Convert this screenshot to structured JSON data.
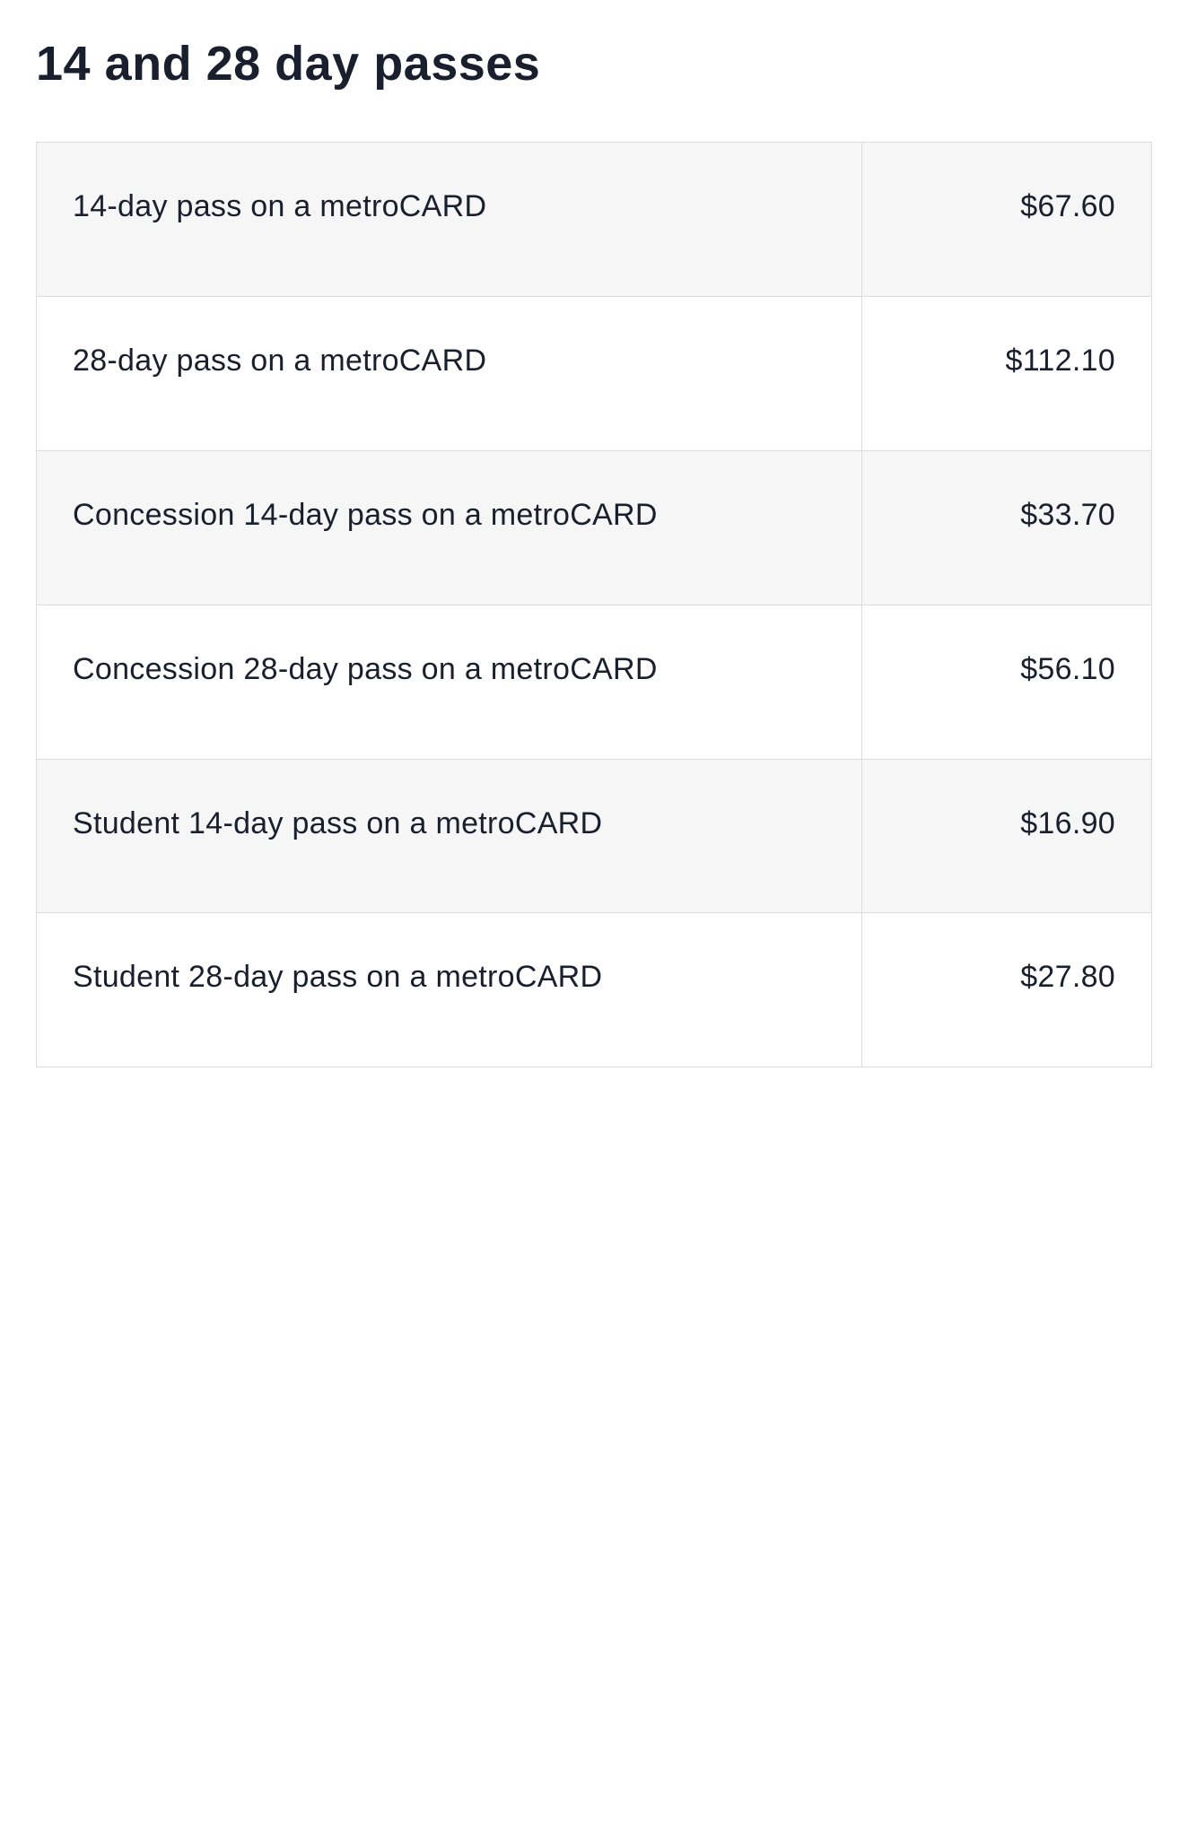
{
  "heading": "14 and 28 day passes",
  "table": {
    "columns": [
      "label",
      "price"
    ],
    "column_widths": [
      "74%",
      "26%"
    ],
    "column_align": [
      "left",
      "right"
    ],
    "border_color": "#dcdcdc",
    "row_bg_odd": "#f6f6f6",
    "row_bg_even": "#ffffff",
    "text_color": "#1a1f2e",
    "font_size_pt": 26,
    "rows": [
      {
        "label": "14-day pass on a metroCARD",
        "price": "$67.60"
      },
      {
        "label": "28-day pass on a metroCARD",
        "price": "$112.10"
      },
      {
        "label": "Concession 14-day pass on a metroCARD",
        "price": "$33.70"
      },
      {
        "label": "Concession 28-day pass on a metroCARD",
        "price": "$56.10"
      },
      {
        "label": "Student 14-day pass on a metroCARD",
        "price": "$16.90"
      },
      {
        "label": "Student 28-day pass on a metroCARD",
        "price": "$27.80"
      }
    ]
  }
}
